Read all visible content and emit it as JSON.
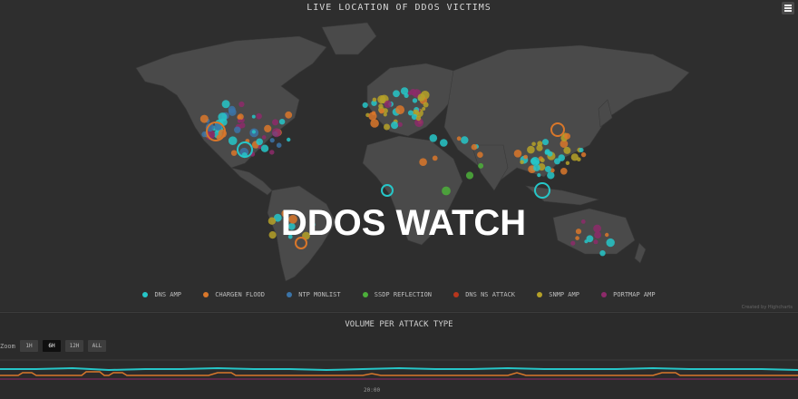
{
  "map": {
    "title": "LIVE LOCATION OF DDOS VICTIMS",
    "headline": "DDOS WATCH",
    "credit": "Created by Highcharts"
  },
  "legend": [
    {
      "label": "DNS AMP",
      "color": "#26c6c8"
    },
    {
      "label": "CHARGEN FLOOD",
      "color": "#d9772a"
    },
    {
      "label": "NTP MONLIST",
      "color": "#3b74a8"
    },
    {
      "label": "SSDP REFLECTION",
      "color": "#4caf3a"
    },
    {
      "label": "DNS NS ATTACK",
      "color": "#b8361c"
    },
    {
      "label": "SNMP AMP",
      "color": "#b5a128"
    },
    {
      "label": "PORTMAP AMP",
      "color": "#8d2a6a"
    }
  ],
  "volume": {
    "title": "VOLUME PER ATTACK TYPE",
    "zoom_label": "Zoom",
    "zoom_options": [
      "1H",
      "6H",
      "12H",
      "ALL"
    ],
    "zoom_selected": "6H",
    "time_label": "20:00"
  },
  "colors": {
    "background": "#2b2b2b",
    "land": "#4a4a4a",
    "dns_amp": "#26c6c8",
    "chargen": "#d9772a",
    "portmap": "#8d2a6a"
  }
}
